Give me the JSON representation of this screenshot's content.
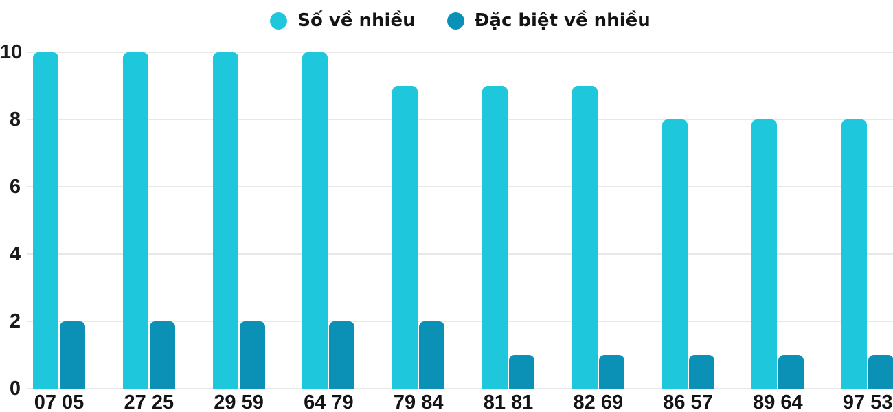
{
  "chart_data": {
    "type": "bar",
    "title": "",
    "categories": [
      "07 05",
      "27 25",
      "29 59",
      "64 79",
      "79 84",
      "81 81",
      "82 69",
      "86 57",
      "89 64",
      "97 53"
    ],
    "series": [
      {
        "name": "Số về nhiều",
        "color": "#1ec7db",
        "values": [
          10,
          10,
          10,
          10,
          9,
          9,
          9,
          8,
          8,
          8
        ]
      },
      {
        "name": "Đặc biệt về nhiều",
        "color": "#0a91b5",
        "values": [
          2,
          2,
          2,
          2,
          2,
          1,
          1,
          1,
          1,
          1
        ]
      }
    ],
    "xlabel": "",
    "ylabel": "",
    "ylim": [
      0,
      10
    ],
    "yticks": [
      0,
      2,
      4,
      6,
      8,
      10
    ],
    "grid": true,
    "legend_position": "top-center",
    "colors": {
      "gridline": "#e8e8e8",
      "axis_text": "#1b1b1b"
    }
  }
}
